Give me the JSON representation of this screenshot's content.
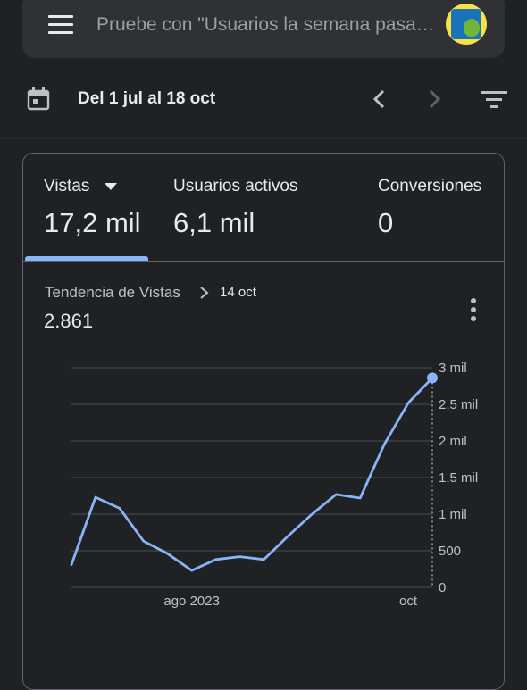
{
  "search": {
    "placeholder": "Pruebe con \"Usuarios la semana pasada\""
  },
  "date_range": {
    "label": "Del 1 jul al 18 oct"
  },
  "metrics": [
    {
      "label": "Vistas",
      "value": "17,2 mil"
    },
    {
      "label": "Usuarios activos",
      "value": "6,1 mil"
    },
    {
      "label": "Conversiones",
      "value": "0"
    }
  ],
  "trend": {
    "title": "Tendencia de Vistas",
    "date": "14 oct",
    "value": "2.861"
  },
  "colors": {
    "accent": "#8ab4f8",
    "background": "#202124",
    "surface": "#303134"
  },
  "icons": [
    "menu-icon",
    "calendar-icon",
    "chevron-left-icon",
    "chevron-right-icon",
    "filter-icon",
    "more-vert-icon",
    "dropdown-arrow-icon"
  ],
  "chart_data": {
    "type": "line",
    "x": [
      "2023-07-01",
      "2023-07-08",
      "2023-07-15",
      "2023-07-22",
      "2023-07-29",
      "2023-08-05",
      "2023-08-12",
      "2023-08-19",
      "2023-08-26",
      "2023-09-02",
      "2023-09-09",
      "2023-09-16",
      "2023-09-23",
      "2023-09-30",
      "2023-10-07",
      "2023-10-14"
    ],
    "series": [
      {
        "values": [
          310,
          1230,
          1080,
          630,
          460,
          230,
          380,
          420,
          380,
          700,
          1000,
          1270,
          1220,
          1950,
          2520,
          2861
        ]
      }
    ],
    "x_tick_labels": [
      "ago 2023",
      "oct"
    ],
    "y_tick_labels": [
      "0",
      "500",
      "1 mil",
      "1,5 mil",
      "2 mil",
      "2,5 mil",
      "3 mil"
    ],
    "ylim": [
      0,
      3000
    ],
    "grid": true,
    "y_axis_position": "right",
    "highlighted_point": {
      "x": "2023-10-14",
      "y": 2861
    }
  }
}
